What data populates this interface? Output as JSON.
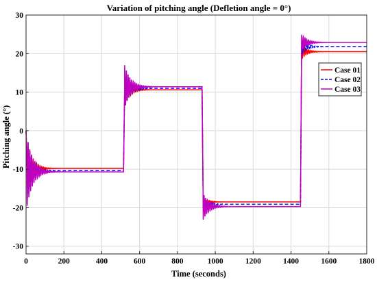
{
  "chart_data": {
    "type": "line",
    "title": "Variation of pitching angle (Defletion angle = 0°)",
    "xlabel": "Time (seconds)",
    "ylabel": "Pitching angle (°)",
    "xlim": [
      0,
      1800
    ],
    "ylim": [
      -32,
      30
    ],
    "xticks": [
      0,
      200,
      400,
      600,
      800,
      1000,
      1200,
      1400,
      1600,
      1800
    ],
    "yticks": [
      -30,
      -20,
      -10,
      0,
      10,
      20,
      30
    ],
    "grid": true,
    "legend_position": "top-right",
    "series": [
      {
        "name": "Case 01",
        "color": "#ff0000",
        "dash": "solid",
        "levels": [
          -9.8,
          10.6,
          -18.5,
          20.5
        ],
        "initial": 0,
        "start_times": [
          0,
          515,
          930,
          1450
        ],
        "overshoot_amplitudes": [
          8.0,
          4.5,
          1.2,
          1.8
        ],
        "decay_time": 28
      },
      {
        "name": "Case 02",
        "color": "#0000ff",
        "dash": "dashed",
        "levels": [
          -10.4,
          11.0,
          -19.1,
          21.8
        ],
        "initial": 0,
        "start_times": [
          0,
          515,
          930,
          1450
        ],
        "overshoot_amplitudes": [
          8.4,
          5.0,
          1.6,
          1.9
        ],
        "decay_time": 30
      },
      {
        "name": "Case 03",
        "color": "#bf00bf",
        "dash": "solid",
        "levels": [
          -10.7,
          11.4,
          -19.7,
          22.9
        ],
        "initial": 0,
        "start_times": [
          0,
          515,
          930,
          1450
        ],
        "overshoot_amplitudes": [
          8.8,
          5.6,
          3.4,
          2.0
        ],
        "decay_time": 32
      }
    ]
  }
}
